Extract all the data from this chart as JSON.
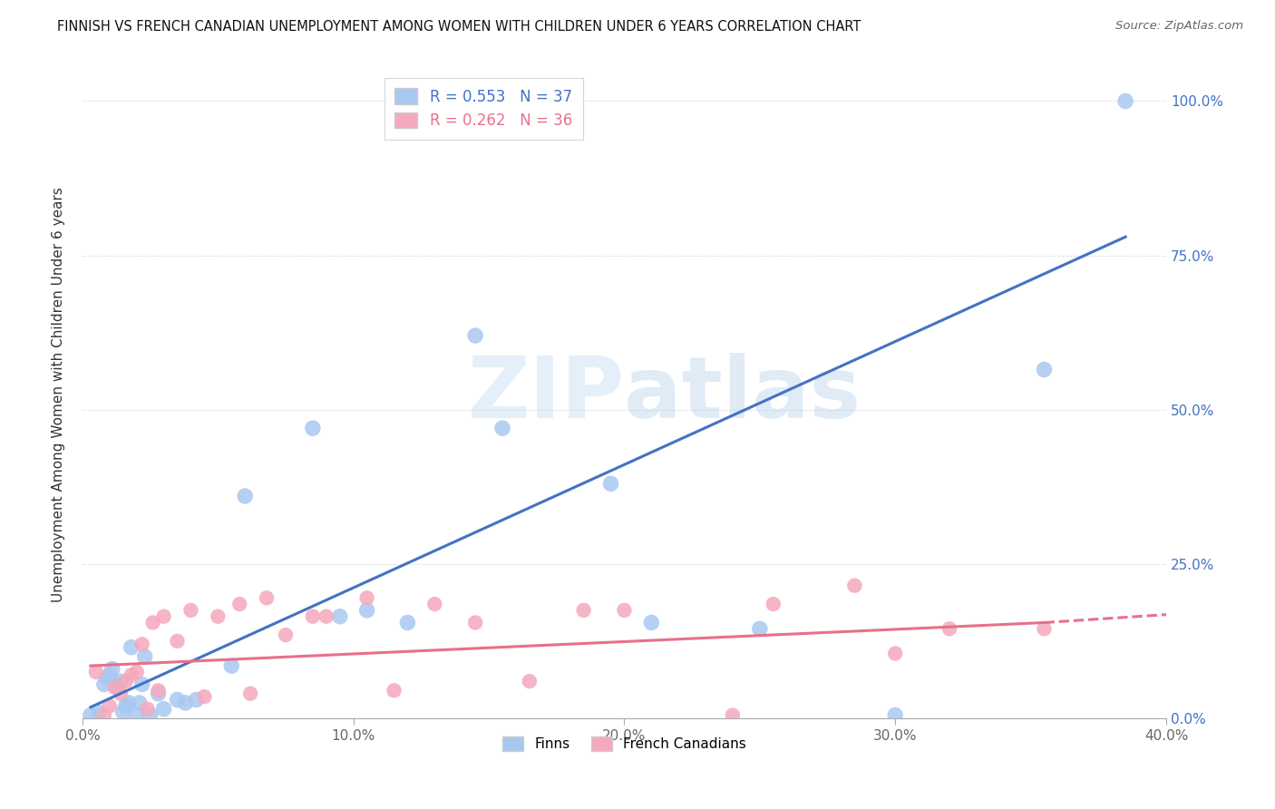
{
  "title": "FINNISH VS FRENCH CANADIAN UNEMPLOYMENT AMONG WOMEN WITH CHILDREN UNDER 6 YEARS CORRELATION CHART",
  "source": "Source: ZipAtlas.com",
  "ylabel": "Unemployment Among Women with Children Under 6 years",
  "xlim": [
    0.0,
    0.4
  ],
  "ylim": [
    0.0,
    1.05
  ],
  "xtick_vals": [
    0.0,
    0.1,
    0.2,
    0.3,
    0.4
  ],
  "xtick_labels": [
    "0.0%",
    "10.0%",
    "20.0%",
    "30.0%",
    "40.0%"
  ],
  "ytick_vals": [
    0.0,
    0.25,
    0.5,
    0.75,
    1.0
  ],
  "ytick_labels": [
    "0.0%",
    "25.0%",
    "50.0%",
    "75.0%",
    "100.0%"
  ],
  "finns_R": "0.553",
  "finns_N": "37",
  "french_R": "0.262",
  "french_N": "36",
  "finns_color": "#A8C8F0",
  "french_color": "#F5A8BC",
  "finns_line_color": "#4472C4",
  "french_line_color": "#E8708A",
  "finns_line_x": [
    0.003,
    0.385
  ],
  "finns_line_y": [
    0.018,
    0.78
  ],
  "french_line_x0": 0.003,
  "french_line_x1": 0.355,
  "french_line_x2": 0.4,
  "french_line_y0": 0.085,
  "french_line_y1": 0.155,
  "french_line_y2": 0.168,
  "finns_x": [
    0.003,
    0.006,
    0.008,
    0.009,
    0.01,
    0.011,
    0.012,
    0.013,
    0.014,
    0.015,
    0.016,
    0.017,
    0.018,
    0.02,
    0.021,
    0.022,
    0.023,
    0.025,
    0.028,
    0.03,
    0.035,
    0.038,
    0.042,
    0.055,
    0.06,
    0.085,
    0.095,
    0.105,
    0.12,
    0.145,
    0.155,
    0.195,
    0.21,
    0.25,
    0.3,
    0.355,
    0.385
  ],
  "finns_y": [
    0.005,
    0.01,
    0.055,
    0.065,
    0.07,
    0.08,
    0.055,
    0.05,
    0.06,
    0.01,
    0.02,
    0.025,
    0.115,
    0.005,
    0.025,
    0.055,
    0.1,
    0.005,
    0.04,
    0.015,
    0.03,
    0.025,
    0.03,
    0.085,
    0.36,
    0.47,
    0.165,
    0.175,
    0.155,
    0.62,
    0.47,
    0.38,
    0.155,
    0.145,
    0.005,
    0.565,
    1.0
  ],
  "french_x": [
    0.005,
    0.008,
    0.01,
    0.012,
    0.014,
    0.016,
    0.018,
    0.02,
    0.022,
    0.024,
    0.026,
    0.028,
    0.03,
    0.035,
    0.04,
    0.045,
    0.05,
    0.058,
    0.062,
    0.068,
    0.075,
    0.085,
    0.09,
    0.105,
    0.115,
    0.13,
    0.145,
    0.165,
    0.185,
    0.2,
    0.24,
    0.255,
    0.285,
    0.3,
    0.32,
    0.355
  ],
  "french_y": [
    0.075,
    0.005,
    0.02,
    0.05,
    0.04,
    0.06,
    0.07,
    0.075,
    0.12,
    0.015,
    0.155,
    0.045,
    0.165,
    0.125,
    0.175,
    0.035,
    0.165,
    0.185,
    0.04,
    0.195,
    0.135,
    0.165,
    0.165,
    0.195,
    0.045,
    0.185,
    0.155,
    0.06,
    0.175,
    0.175,
    0.005,
    0.185,
    0.215,
    0.105,
    0.145,
    0.145
  ]
}
